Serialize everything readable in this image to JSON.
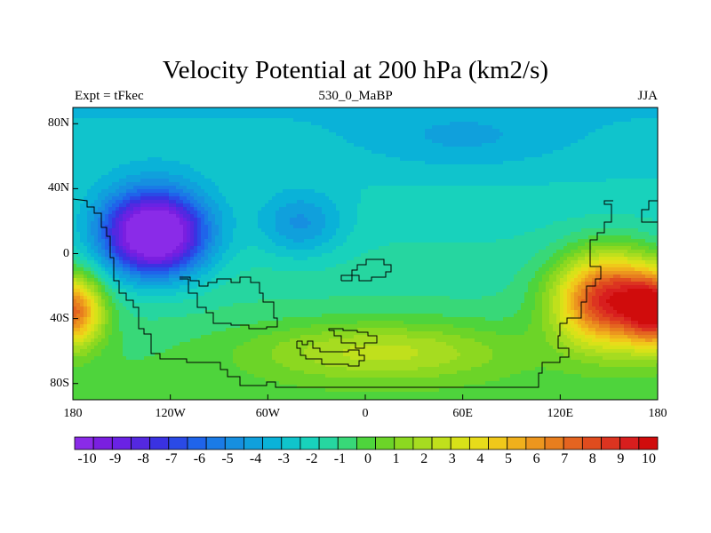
{
  "title": "Velocity Potential at 200 hPa (km2/s)",
  "subtitle_left": "Expt = tFkec",
  "subtitle_center": "530_0_MaBP",
  "subtitle_right": "JJA",
  "y_axis": {
    "tick_labels": [
      "80N",
      "40N",
      "0",
      "40S",
      "80S"
    ],
    "tick_values": [
      80,
      40,
      0,
      -40,
      -80
    ],
    "range": [
      -90,
      90
    ]
  },
  "x_axis": {
    "tick_labels": [
      "180",
      "120W",
      "60W",
      "0",
      "60E",
      "120E",
      "180"
    ],
    "tick_values": [
      -180,
      -120,
      -60,
      0,
      60,
      120,
      180
    ],
    "range": [
      -180,
      180
    ]
  },
  "colorbar": {
    "labels": [
      "-10",
      "-9",
      "-8",
      "-7",
      "-6",
      "-5",
      "-4",
      "-3",
      "-2",
      "-1",
      "0",
      "1",
      "2",
      "3",
      "4",
      "5",
      "6",
      "7",
      "8",
      "9",
      "10"
    ],
    "levels": [
      -10,
      -9,
      -8,
      -7,
      -6,
      -5,
      -4,
      -3,
      -2,
      -1,
      0,
      1,
      2,
      3,
      4,
      5,
      6,
      7,
      8,
      9,
      10
    ],
    "colors": [
      "#8a2be8",
      "#7a1fe0",
      "#6a22e4",
      "#5428e0",
      "#3a32e2",
      "#2a4ae6",
      "#1f64ea",
      "#1a7be6",
      "#168fe0",
      "#10a0dc",
      "#0ab2d8",
      "#10c4cc",
      "#18d2bc",
      "#26d6a0",
      "#38d878",
      "#4ed43c",
      "#6cd428",
      "#8cd820",
      "#a6dc20",
      "#c0e01c",
      "#d8e218",
      "#e8dc1a",
      "#f0c81a",
      "#f0b01c",
      "#ec961e",
      "#e87e1e",
      "#e46420",
      "#e04c1e",
      "#dc3420",
      "#d81e1e",
      "#d00c0c"
    ]
  },
  "field_centers": [
    {
      "lon": -130,
      "lat": 12,
      "value": -10.5,
      "sx": 32,
      "sy": 26
    },
    {
      "lon": -40,
      "lat": 18,
      "value": -2.5,
      "sx": 26,
      "sy": 20
    },
    {
      "lon": 150,
      "lat": -28,
      "value": 10,
      "sx": 32,
      "sy": 28
    },
    {
      "lon": -180,
      "lat": -35,
      "value": 8,
      "sx": 18,
      "sy": 22
    },
    {
      "lon": 180,
      "lat": -35,
      "value": 8,
      "sx": 18,
      "sy": 22
    },
    {
      "lon": 10,
      "lat": -60,
      "value": 3,
      "sx": 80,
      "sy": 18
    },
    {
      "lon": 60,
      "lat": 70,
      "value": -1,
      "sx": 60,
      "sy": 18
    }
  ]
}
